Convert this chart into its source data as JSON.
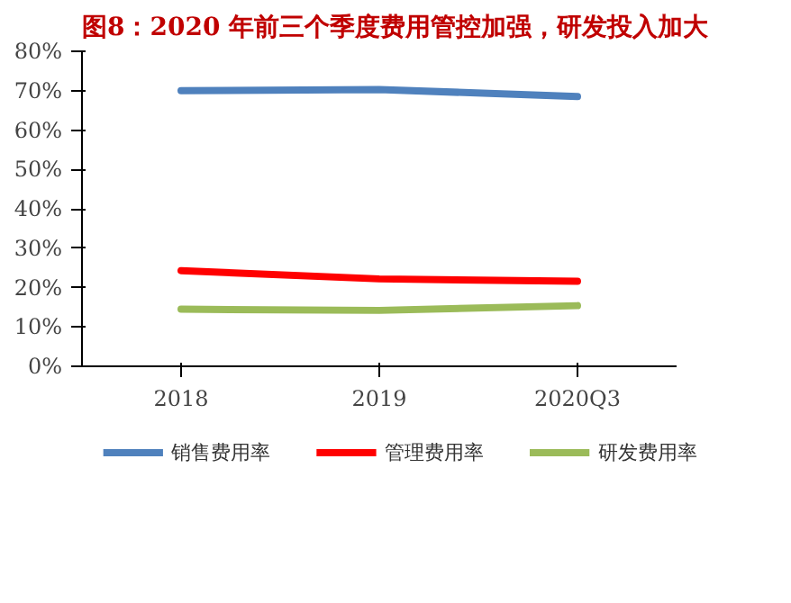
{
  "chart_data": {
    "type": "line",
    "title": "图8：2020 年前三个季度费用管控加强，研发投入加大",
    "categories": [
      "2018",
      "2019",
      "2020Q3"
    ],
    "series": [
      {
        "name": "销售费用率",
        "color": "#4f81bd",
        "values": [
          70.0,
          70.3,
          68.5
        ]
      },
      {
        "name": "管理费用率",
        "color": "#ff0000",
        "values": [
          24.3,
          22.2,
          21.6
        ]
      },
      {
        "name": "研发费用率",
        "color": "#9bbb59",
        "values": [
          14.5,
          14.2,
          15.4
        ]
      }
    ],
    "ylim": [
      0,
      80
    ],
    "yticks": [
      {
        "value": 0,
        "label": "0%"
      },
      {
        "value": 10,
        "label": "10%"
      },
      {
        "value": 20,
        "label": "20%"
      },
      {
        "value": 30,
        "label": "30%"
      },
      {
        "value": 40,
        "label": "40%"
      },
      {
        "value": 50,
        "label": "50%"
      },
      {
        "value": 60,
        "label": "60%"
      },
      {
        "value": 70,
        "label": "70%"
      },
      {
        "value": 80,
        "label": "80%"
      }
    ],
    "grid": false,
    "legend": "bottom",
    "marker": "none",
    "line_style": "solid"
  }
}
